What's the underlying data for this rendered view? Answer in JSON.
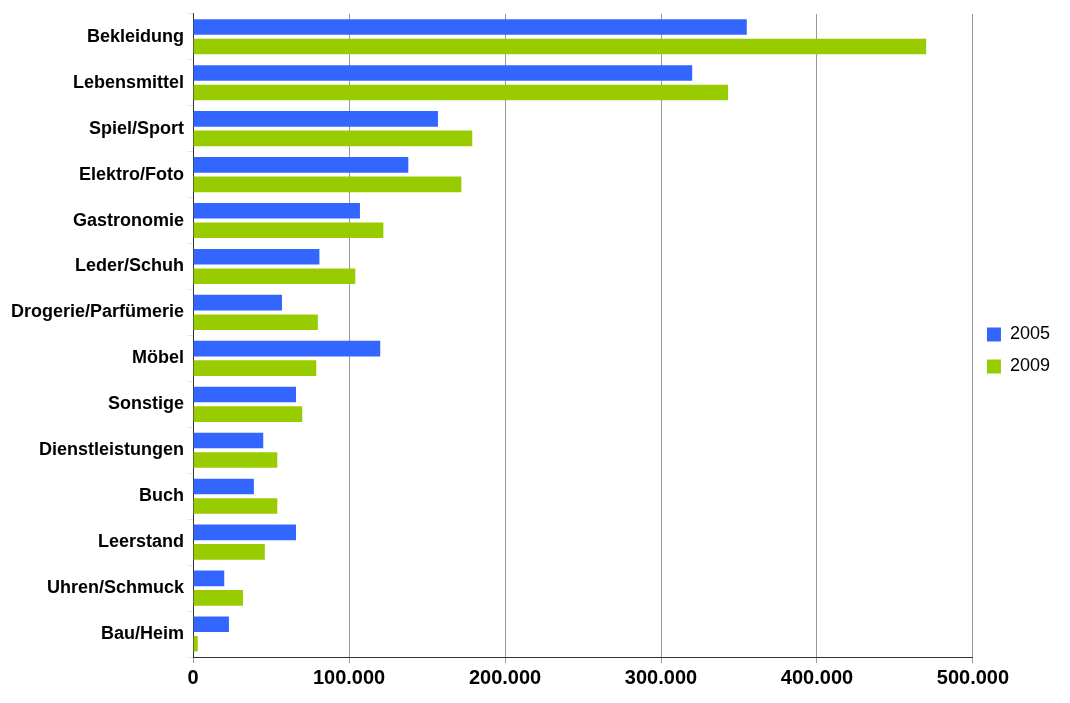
{
  "chart_data": {
    "type": "bar",
    "orientation": "horizontal",
    "categories": [
      "Bekleidung",
      "Lebensmittel",
      "Spiel/Sport",
      "Elektro/Foto",
      "Gastronomie",
      "Leder/Schuh",
      "Drogerie/Parfümerie",
      "Möbel",
      "Sonstige",
      "Dienstleistungen",
      "Buch",
      "Leerstand",
      "Uhren/Schmuck",
      "Bau/Heim"
    ],
    "series": [
      {
        "name": "2005",
        "color": "#3366ff",
        "values": [
          355000,
          320000,
          157000,
          138000,
          107000,
          81000,
          57000,
          120000,
          66000,
          45000,
          39000,
          66000,
          20000,
          23000
        ]
      },
      {
        "name": "2009",
        "color": "#99cc00",
        "values": [
          470000,
          343000,
          179000,
          172000,
          122000,
          104000,
          80000,
          79000,
          70000,
          54000,
          54000,
          46000,
          32000,
          3000
        ]
      }
    ],
    "xlim": [
      0,
      500000
    ],
    "xticks": [
      {
        "value": 0,
        "label": "0"
      },
      {
        "value": 100000,
        "label": "100.000"
      },
      {
        "value": 200000,
        "label": "200.000"
      },
      {
        "value": 300000,
        "label": "300.000"
      },
      {
        "value": 400000,
        "label": "400.000"
      },
      {
        "value": 500000,
        "label": "500.000"
      }
    ],
    "grid": "x",
    "legend": "right"
  }
}
